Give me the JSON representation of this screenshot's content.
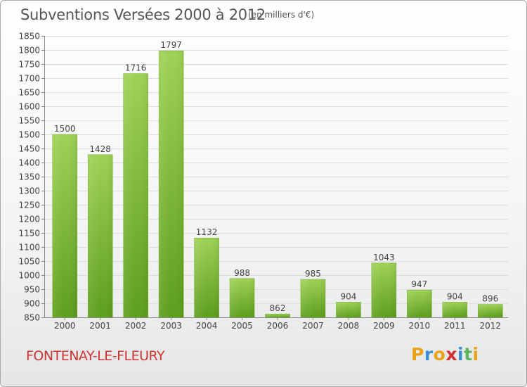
{
  "title": "Subventions Versées 2000 à 2012",
  "subtitle": "(en milliers d'€)",
  "commune": "FONTENAY-LE-FLEURY",
  "logo": {
    "letters": [
      "P",
      "r",
      "o",
      "x",
      "i",
      "t",
      "i"
    ],
    "colors": [
      "#e8a319",
      "#3a8fd0",
      "#e8a319",
      "#d32f2f",
      "#3a8fd0",
      "#5cb85c",
      "#e8a319"
    ]
  },
  "colors": {
    "bar_top": "#9fd155",
    "bar_bottom": "#5c9e1c",
    "commune": "#cc3333",
    "text": "#555555"
  },
  "chart_data": {
    "type": "bar",
    "categories": [
      "2000",
      "2001",
      "2002",
      "2003",
      "2004",
      "2005",
      "2006",
      "2007",
      "2008",
      "2009",
      "2010",
      "2011",
      "2012"
    ],
    "values": [
      1500,
      1428,
      1716,
      1797,
      1132,
      988,
      862,
      985,
      904,
      1043,
      947,
      904,
      896
    ],
    "ylim": [
      850,
      1850
    ],
    "ytick_step": 50,
    "grid": true
  }
}
